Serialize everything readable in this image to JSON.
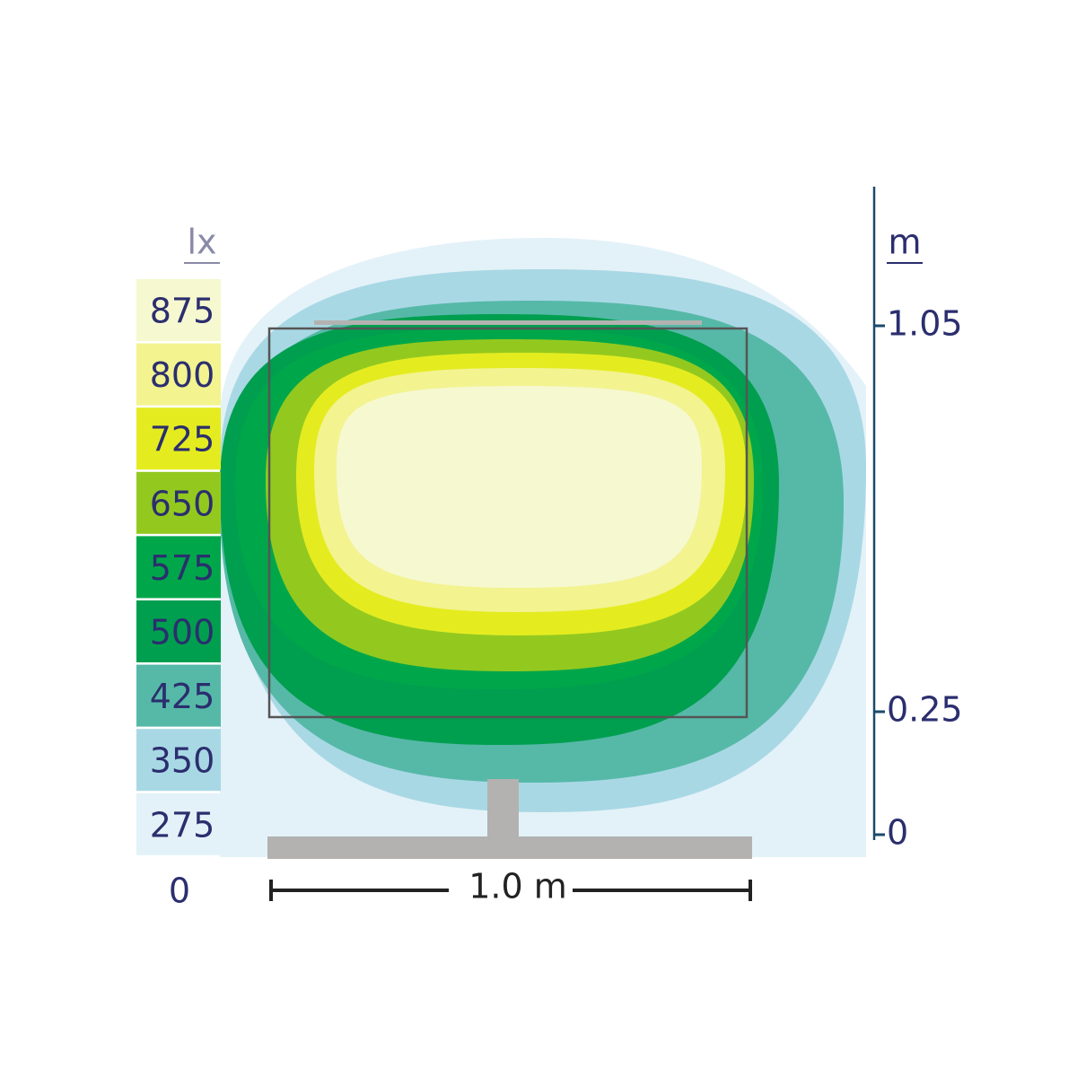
{
  "legend": {
    "unit": "lx",
    "levels": [
      {
        "label": "875",
        "color": "#f6f8d0"
      },
      {
        "label": "800",
        "color": "#f3f390"
      },
      {
        "label": "725",
        "color": "#e4ec20"
      },
      {
        "label": "650",
        "color": "#93c91f"
      },
      {
        "label": "575",
        "color": "#00a74a"
      },
      {
        "label": "500",
        "color": "#009f4f"
      },
      {
        "label": "425",
        "color": "#56b9a8"
      },
      {
        "label": "350",
        "color": "#a9d8e5"
      },
      {
        "label": "275",
        "color": "#e3f2f8"
      }
    ],
    "floor_label": "0"
  },
  "height_axis": {
    "unit": "m",
    "ticks": [
      "1.05",
      "0.25",
      "0"
    ]
  },
  "scale_bar": {
    "label": "1.0 m"
  }
}
